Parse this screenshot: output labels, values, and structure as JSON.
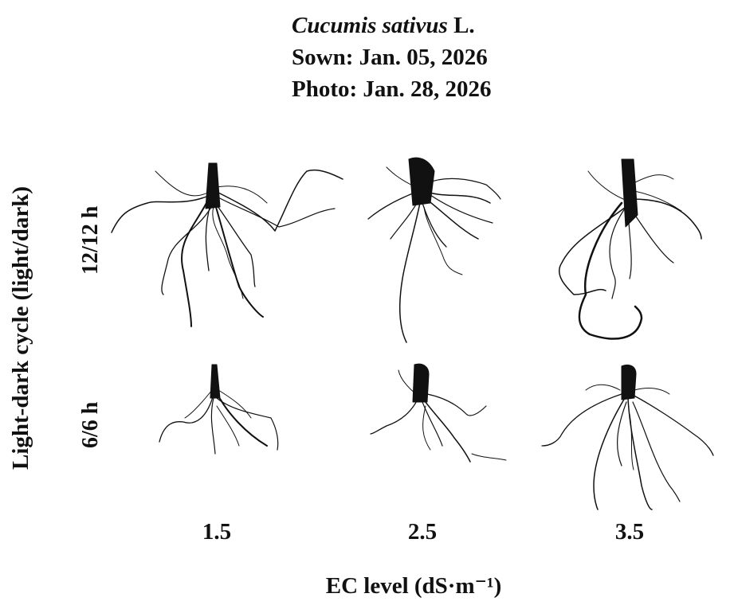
{
  "header": {
    "species": "Cucumis sativus",
    "species_suffix": " L.",
    "sown": "Sown: Jan. 05, 2026",
    "photo": "Photo: Jan. 28, 2026"
  },
  "axes": {
    "y_label": "Light-dark cycle (light/dark)",
    "x_label": "EC level (dS·m⁻¹)",
    "rows": [
      "12/12 h",
      "6/6 h"
    ],
    "columns": [
      "1.5",
      "2.5",
      "3.5"
    ]
  },
  "colors": {
    "root": "#111111",
    "background": "#ffffff"
  }
}
